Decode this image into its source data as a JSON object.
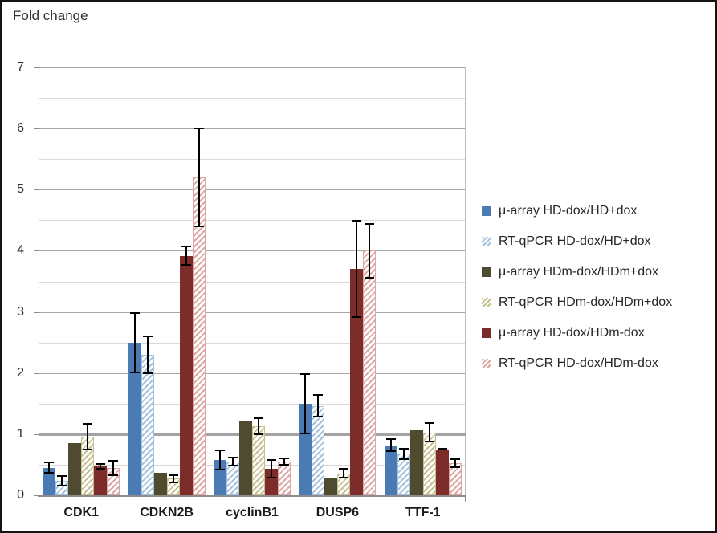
{
  "title": "Fold change",
  "chart_data": {
    "type": "bar",
    "title": "Fold change",
    "categories": [
      "CDK1",
      "CDKN2B",
      "cyclinB1",
      "DUSP6",
      "TTF-1"
    ],
    "series": [
      {
        "name": "μ-array HD-dox/HD+dox",
        "pattern": "solid",
        "color": "#4b7bb5",
        "values": [
          0.45,
          2.5,
          0.58,
          1.5,
          0.82
        ],
        "errors": [
          0.1,
          0.5,
          0.17,
          0.5,
          0.11
        ]
      },
      {
        "name": "RT-qPCR HD-dox/HD+dox",
        "pattern": "hatch",
        "color": "#a4c2de",
        "values": [
          0.24,
          2.3,
          0.55,
          1.46,
          0.68
        ],
        "errors": [
          0.09,
          0.32,
          0.08,
          0.19,
          0.1
        ]
      },
      {
        "name": "μ-array HDm-dox/HDm+dox",
        "pattern": "solid",
        "color": "#4e4b31",
        "values": [
          0.85,
          0.37,
          1.22,
          0.28,
          1.06
        ],
        "errors": [
          0,
          0,
          0,
          0,
          0
        ]
      },
      {
        "name": "RT-qPCR HDm-dox/HDm+dox",
        "pattern": "hatch",
        "color": "#c6c091",
        "values": [
          0.96,
          0.27,
          1.13,
          0.36,
          1.03
        ],
        "errors": [
          0.22,
          0.07,
          0.15,
          0.09,
          0.16
        ]
      },
      {
        "name": "μ-array HD-dox/HDm-dox",
        "pattern": "solid",
        "color": "#7c2d2a",
        "values": [
          0.47,
          3.92,
          0.43,
          3.7,
          0.75
        ],
        "errors": [
          0.05,
          0.17,
          0.16,
          0.8,
          0.02
        ]
      },
      {
        "name": "RT-qPCR HD-dox/HDm-dox",
        "pattern": "hatch",
        "color": "#dca7a3",
        "values": [
          0.45,
          5.2,
          0.55,
          4.0,
          0.53
        ],
        "errors": [
          0.13,
          0.82,
          0.07,
          0.45,
          0.08
        ]
      }
    ],
    "ylim": [
      0,
      7
    ],
    "y_tick_step": 1,
    "y_minor_step": 0.5,
    "y_tick_labels": [
      "0",
      "1",
      "2",
      "3",
      "4",
      "5",
      "6",
      "7"
    ],
    "reference_line": 1,
    "grid": true,
    "legend_position": "right",
    "error_bar_color": "#000000"
  }
}
